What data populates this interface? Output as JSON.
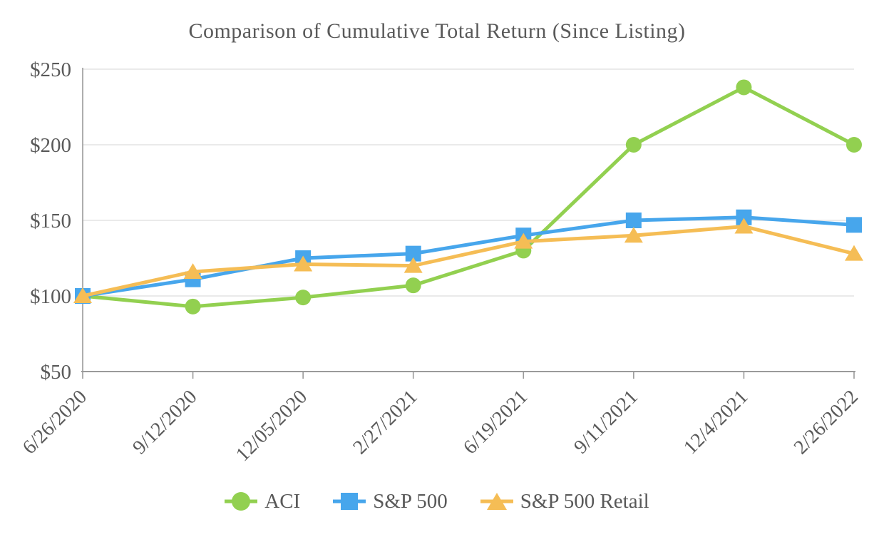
{
  "chart_data": {
    "type": "line",
    "title": "Comparison of Cumulative Total Return (Since Listing)",
    "x": [
      "6/26/2020",
      "9/12/2020",
      "12/05/2020",
      "2/27/2021",
      "6/19/2021",
      "9/11/2021",
      "12/4/2021",
      "2/26/2022"
    ],
    "series": [
      {
        "name": "ACI",
        "marker": "circle",
        "color": "#92d050",
        "values": [
          100,
          93,
          99,
          107,
          130,
          200,
          238,
          200
        ]
      },
      {
        "name": "S&P 500",
        "marker": "square",
        "color": "#47a6ec",
        "values": [
          100,
          111,
          125,
          128,
          140,
          150,
          152,
          147
        ]
      },
      {
        "name": "S&P 500 Retail",
        "marker": "triangle",
        "color": "#f5bd55",
        "values": [
          100,
          116,
          121,
          120,
          136,
          140,
          146,
          128
        ]
      }
    ],
    "xlabel": "",
    "ylabel": "",
    "ylim": [
      50,
      250
    ],
    "yticks": [
      50,
      100,
      150,
      200,
      250
    ],
    "ytick_labels": [
      "$50",
      "$100",
      "$150",
      "$200",
      "$250"
    ],
    "grid": "horizontal",
    "legend_position": "bottom"
  },
  "colors": {
    "text": "#595959",
    "gridline": "#e3e3e3",
    "axis": "#9a9a9a"
  }
}
